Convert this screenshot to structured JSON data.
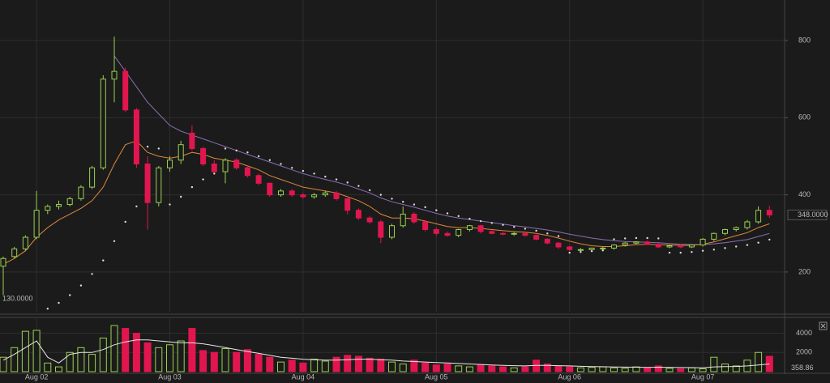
{
  "chart_data": [
    {
      "type": "candlestick",
      "ylim": [
        97,
        905
      ],
      "yticks": [
        200,
        400,
        600,
        800
      ],
      "grid": true,
      "up_color": "#9ad04f",
      "down_color": "#e2164f",
      "open": [
        215,
        240,
        260,
        290,
        360,
        370,
        375,
        390,
        420,
        470,
        700,
        720,
        620,
        480,
        380,
        470,
        490,
        560,
        520,
        480,
        460,
        490,
        470,
        450,
        430,
        400,
        410,
        400,
        395,
        400,
        405,
        390,
        360,
        340,
        330,
        290,
        320,
        350,
        330,
        310,
        300,
        295,
        310,
        320,
        305,
        300,
        298,
        300,
        295,
        285,
        275,
        265,
        258,
        258,
        262,
        262,
        270,
        275,
        278,
        272,
        265,
        268,
        265,
        270,
        285,
        300,
        310,
        315,
        330,
        360
      ],
      "high": [
        240,
        265,
        295,
        410,
        375,
        385,
        395,
        425,
        475,
        710,
        810,
        730,
        625,
        500,
        475,
        500,
        540,
        580,
        525,
        490,
        495,
        495,
        475,
        455,
        432,
        415,
        415,
        405,
        405,
        410,
        410,
        392,
        365,
        345,
        335,
        325,
        370,
        355,
        332,
        315,
        305,
        312,
        322,
        322,
        308,
        303,
        303,
        303,
        297,
        288,
        278,
        268,
        262,
        263,
        265,
        272,
        278,
        280,
        281,
        275,
        270,
        272,
        271,
        288,
        302,
        312,
        318,
        335,
        370,
        372
      ],
      "low": [
        140,
        235,
        255,
        285,
        350,
        362,
        370,
        385,
        415,
        465,
        640,
        615,
        470,
        310,
        370,
        460,
        480,
        515,
        475,
        455,
        430,
        465,
        445,
        425,
        395,
        395,
        395,
        390,
        390,
        395,
        385,
        350,
        335,
        325,
        275,
        285,
        315,
        325,
        305,
        295,
        292,
        290,
        305,
        300,
        298,
        295,
        294,
        292,
        282,
        272,
        260,
        255,
        254,
        255,
        258,
        258,
        266,
        272,
        270,
        262,
        262,
        262,
        262,
        266,
        280,
        295,
        305,
        310,
        325,
        340
      ],
      "close": [
        235,
        260,
        290,
        360,
        370,
        375,
        390,
        420,
        470,
        700,
        720,
        620,
        480,
        380,
        470,
        490,
        530,
        520,
        480,
        460,
        490,
        470,
        450,
        430,
        400,
        410,
        400,
        395,
        400,
        405,
        390,
        360,
        340,
        330,
        290,
        320,
        350,
        330,
        310,
        300,
        295,
        310,
        320,
        305,
        300,
        298,
        300,
        295,
        285,
        275,
        265,
        258,
        258,
        262,
        262,
        270,
        275,
        278,
        272,
        265,
        268,
        265,
        270,
        285,
        300,
        310,
        315,
        330,
        360,
        348
      ],
      "ma_fast": {
        "color": "#e0873a",
        "values": [
          220,
          235,
          255,
          290,
          315,
          335,
          350,
          365,
          385,
          420,
          480,
          530,
          540,
          510,
          500,
          495,
          500,
          510,
          505,
          495,
          490,
          485,
          475,
          465,
          450,
          440,
          430,
          420,
          415,
          410,
          405,
          395,
          385,
          370,
          350,
          340,
          340,
          338,
          332,
          325,
          318,
          315,
          315,
          313,
          310,
          307,
          305,
          303,
          300,
          295,
          288,
          280,
          273,
          268,
          266,
          266,
          268,
          271,
          272,
          271,
          270,
          269,
          269,
          272,
          278,
          286,
          294,
          302,
          315,
          325
        ]
      },
      "ma_slow": {
        "color": "#8a6fb0",
        "values": [
          null,
          null,
          null,
          null,
          null,
          null,
          null,
          null,
          null,
          null,
          760,
          720,
          680,
          640,
          610,
          580,
          565,
          555,
          545,
          535,
          525,
          515,
          505,
          495,
          485,
          475,
          465,
          455,
          447,
          440,
          433,
          425,
          415,
          405,
          392,
          382,
          375,
          368,
          360,
          352,
          345,
          340,
          336,
          332,
          328,
          324,
          320,
          317,
          313,
          309,
          304,
          298,
          293,
          288,
          284,
          281,
          279,
          278,
          277,
          276,
          274,
          272,
          271,
          271,
          273,
          276,
          280,
          284,
          292,
          300
        ]
      },
      "sar": {
        "color": "#dddddd",
        "values": [
          null,
          null,
          null,
          null,
          105,
          120,
          140,
          165,
          195,
          230,
          280,
          330,
          370,
          525,
          520,
          375,
          395,
          420,
          440,
          455,
          520,
          515,
          510,
          500,
          490,
          480,
          470,
          462,
          455,
          447,
          440,
          432,
          423,
          412,
          400,
          390,
          382,
          375,
          368,
          360,
          352,
          345,
          338,
          332,
          327,
          322,
          317,
          312,
          307,
          300,
          293,
          250,
          252,
          254,
          256,
          285,
          287,
          288,
          288,
          287,
          250,
          250,
          252,
          255,
          258,
          262,
          266,
          270,
          276,
          284
        ]
      },
      "annotations": [
        {
          "value": 348,
          "label": "348.0000"
        },
        {
          "value": 130,
          "label": "130.0000"
        }
      ]
    },
    {
      "type": "bar",
      "categories": [
        null,
        null,
        null,
        "Aug 02",
        null,
        null,
        null,
        null,
        null,
        null,
        null,
        null,
        null,
        null,
        null,
        "Aug 03",
        null,
        null,
        null,
        null,
        null,
        null,
        null,
        null,
        null,
        null,
        null,
        "Aug 04",
        null,
        null,
        null,
        null,
        null,
        null,
        null,
        null,
        null,
        null,
        null,
        "Aug 05",
        null,
        null,
        null,
        null,
        null,
        null,
        null,
        null,
        null,
        null,
        null,
        "Aug 06",
        null,
        null,
        null,
        null,
        null,
        null,
        null,
        null,
        null,
        null,
        null,
        "Aug 07",
        null,
        null,
        null,
        null,
        null,
        null
      ],
      "values": [
        1500,
        2500,
        4200,
        4300,
        900,
        500,
        2000,
        2500,
        1800,
        3500,
        4800,
        4500,
        4000,
        3000,
        2500,
        2800,
        3200,
        4500,
        2200,
        2000,
        2400,
        2000,
        2300,
        1800,
        1500,
        1000,
        1200,
        900,
        1300,
        1100,
        1500,
        1700,
        1600,
        1400,
        1300,
        1000,
        800,
        1200,
        900,
        700,
        800,
        600,
        500,
        700,
        600,
        500,
        400,
        500,
        1200,
        800,
        600,
        500,
        400,
        450,
        500,
        400,
        350,
        500,
        400,
        600,
        350,
        300,
        400,
        300,
        1500,
        800,
        600,
        1200,
        2000,
        1600
      ],
      "ma": {
        "color": "#e8e8e8",
        "values": [
          1200,
          1800,
          2500,
          3200,
          1500,
          900,
          1800,
          2000,
          2000,
          2300,
          2800,
          3100,
          3300,
          3300,
          3200,
          3100,
          3000,
          3000,
          2900,
          2700,
          2500,
          2300,
          2100,
          1900,
          1700,
          1500,
          1400,
          1300,
          1250,
          1200,
          1200,
          1250,
          1300,
          1300,
          1250,
          1200,
          1100,
          1050,
          1000,
          950,
          900,
          850,
          800,
          750,
          700,
          650,
          620,
          600,
          650,
          650,
          620,
          600,
          560,
          530,
          510,
          490,
          470,
          460,
          450,
          460,
          450,
          430,
          420,
          400,
          500,
          520,
          540,
          600,
          700,
          800
        ]
      },
      "ylim": [
        0,
        5560
      ],
      "yticks": [
        2000,
        4000
      ],
      "grid": true,
      "annotations": [
        {
          "value": 358.86,
          "label": "358.86"
        }
      ]
    }
  ]
}
